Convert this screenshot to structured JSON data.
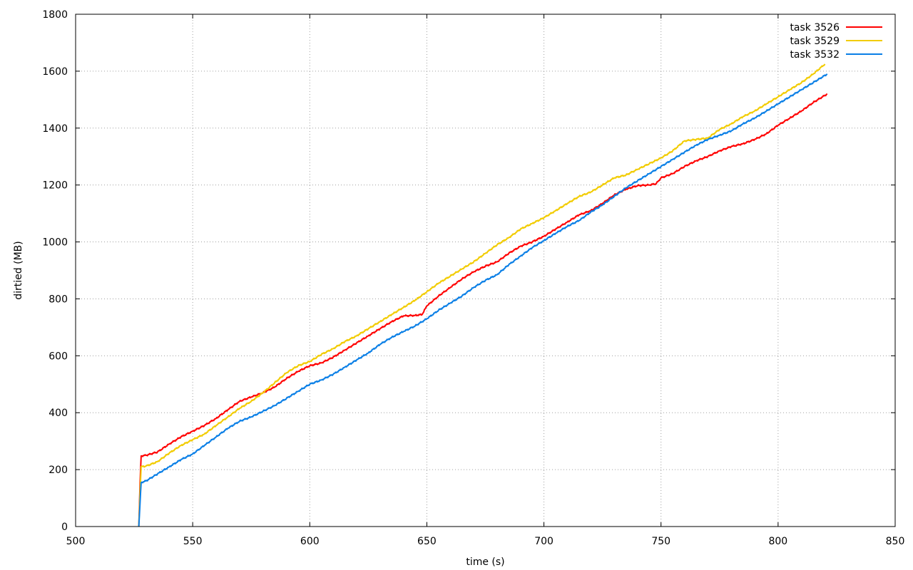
{
  "chart_data": {
    "type": "line",
    "xlabel": "time (s)",
    "ylabel": "dirtied (MB)",
    "xlim": [
      500,
      850
    ],
    "ylim": [
      0,
      1800
    ],
    "xticks": [
      500,
      550,
      600,
      650,
      700,
      750,
      800,
      850
    ],
    "yticks": [
      0,
      200,
      400,
      600,
      800,
      1000,
      1200,
      1400,
      1600,
      1800
    ],
    "grid": true,
    "legend_position": "top-right",
    "series": [
      {
        "name": "task 3526",
        "color": "#ff0000",
        "x": [
          527,
          527.5,
          528,
          530,
          535,
          540,
          545,
          550,
          555,
          560,
          565,
          570,
          575,
          580,
          585,
          590,
          595,
          600,
          605,
          610,
          615,
          620,
          625,
          630,
          635,
          640,
          645,
          648,
          650,
          655,
          660,
          665,
          670,
          675,
          680,
          685,
          690,
          695,
          700,
          705,
          710,
          715,
          720,
          725,
          730,
          735,
          740,
          745,
          748,
          750,
          755,
          760,
          765,
          770,
          775,
          780,
          785,
          790,
          795,
          800,
          805,
          810,
          815,
          821
        ],
        "y": [
          0,
          150,
          248,
          250,
          262,
          290,
          315,
          335,
          355,
          380,
          410,
          440,
          455,
          470,
          490,
          520,
          545,
          565,
          575,
          595,
          620,
          645,
          670,
          695,
          720,
          740,
          742,
          745,
          775,
          810,
          840,
          870,
          895,
          915,
          930,
          960,
          985,
          1000,
          1020,
          1045,
          1070,
          1095,
          1110,
          1135,
          1165,
          1185,
          1198,
          1200,
          1205,
          1225,
          1240,
          1265,
          1285,
          1300,
          1320,
          1335,
          1345,
          1360,
          1380,
          1410,
          1435,
          1460,
          1490,
          1520
        ]
      },
      {
        "name": "task 3529",
        "color": "#f2cc00",
        "x": [
          527,
          527.5,
          528,
          530,
          535,
          540,
          545,
          550,
          555,
          560,
          565,
          570,
          575,
          580,
          585,
          590,
          595,
          600,
          605,
          610,
          615,
          620,
          625,
          630,
          635,
          640,
          645,
          650,
          655,
          660,
          665,
          670,
          675,
          680,
          685,
          690,
          695,
          700,
          705,
          710,
          715,
          720,
          725,
          730,
          735,
          740,
          745,
          750,
          755,
          760,
          765,
          770,
          775,
          780,
          785,
          790,
          795,
          800,
          805,
          810,
          815,
          820
        ],
        "y": [
          0,
          120,
          210,
          212,
          228,
          258,
          285,
          305,
          325,
          355,
          385,
          415,
          440,
          470,
          505,
          540,
          565,
          580,
          605,
          625,
          650,
          670,
          695,
          720,
          745,
          770,
          795,
          825,
          855,
          880,
          905,
          930,
          960,
          990,
          1015,
          1045,
          1065,
          1085,
          1110,
          1135,
          1160,
          1175,
          1200,
          1225,
          1235,
          1255,
          1275,
          1295,
          1320,
          1355,
          1360,
          1365,
          1395,
          1415,
          1440,
          1460,
          1485,
          1510,
          1535,
          1560,
          1590,
          1625
        ]
      },
      {
        "name": "task 3532",
        "color": "#0a7fe6",
        "x": [
          527,
          527.5,
          528,
          530,
          535,
          540,
          545,
          550,
          555,
          560,
          565,
          570,
          575,
          580,
          585,
          590,
          595,
          600,
          605,
          610,
          615,
          620,
          625,
          630,
          635,
          640,
          645,
          650,
          655,
          660,
          665,
          670,
          675,
          680,
          685,
          690,
          695,
          700,
          705,
          710,
          715,
          720,
          725,
          730,
          735,
          740,
          745,
          750,
          755,
          760,
          765,
          770,
          775,
          780,
          785,
          790,
          795,
          800,
          805,
          810,
          815,
          821
        ],
        "y": [
          0,
          80,
          155,
          160,
          185,
          210,
          235,
          255,
          285,
          315,
          345,
          370,
          385,
          405,
          425,
          450,
          475,
          500,
          515,
          535,
          560,
          585,
          610,
          640,
          665,
          685,
          705,
          730,
          760,
          785,
          810,
          840,
          865,
          885,
          920,
          950,
          980,
          1005,
          1030,
          1055,
          1075,
          1105,
          1130,
          1160,
          1190,
          1215,
          1240,
          1265,
          1290,
          1315,
          1340,
          1360,
          1375,
          1390,
          1415,
          1435,
          1460,
          1485,
          1510,
          1535,
          1560,
          1590
        ]
      }
    ]
  }
}
